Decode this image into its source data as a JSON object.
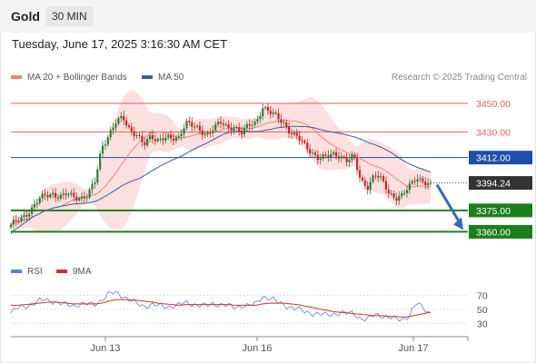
{
  "header": {
    "title": "Gold",
    "timeframe": "30 MIN"
  },
  "datetime": "Tuesday, June 17, 2025 3:16:30 AM CET",
  "legend": {
    "ma20_label": "MA 20 + Bollinger Bands",
    "ma50_label": "MA 50",
    "rsi_label": "RSI",
    "rsi_ma_label": "9MA",
    "credit": "Research © 2025 Trading Central"
  },
  "colors": {
    "bull": "#2e7d32",
    "bear": "#c62828",
    "band": "#f9c6c6",
    "ma20": "#f08080",
    "ma50": "#3a5ba0",
    "support": "#1b7f1b",
    "resistance": "#e06060",
    "pivot": "#1f4eaa",
    "price_tag": "#333333",
    "arrow": "#2f6eb5",
    "rsi": "#5b7fd6",
    "rsi_ma": "#d32f2f"
  },
  "chart_data": [
    {
      "type": "candlestick",
      "title": "Gold",
      "timeframe": "30 MIN",
      "x_ticks": [
        "Jun 13",
        "Jun 16",
        "Jun 17"
      ],
      "ylim": [
        3352,
        3462
      ],
      "current_price": "3394.24",
      "levels": [
        {
          "value": 3450.0,
          "label": "3450.00",
          "kind": "resistance"
        },
        {
          "value": 3430.0,
          "label": "3430.00",
          "kind": "resistance"
        },
        {
          "value": 3412.0,
          "label": "3412.00",
          "kind": "pivot"
        },
        {
          "value": 3375.0,
          "label": "3375.00",
          "kind": "support"
        },
        {
          "value": 3360.0,
          "label": "3360.00",
          "kind": "support"
        }
      ],
      "arrow": {
        "from": 3394.24,
        "to": 3360.0
      },
      "price_anchors": [
        3364,
        3368,
        3372,
        3376,
        3382,
        3386,
        3387,
        3384,
        3386,
        3385,
        3384,
        3385,
        3395,
        3420,
        3428,
        3436,
        3440,
        3432,
        3428,
        3420,
        3427,
        3425,
        3426,
        3424,
        3426,
        3438,
        3434,
        3430,
        3428,
        3434,
        3436,
        3432,
        3434,
        3430,
        3434,
        3436,
        3448,
        3444,
        3440,
        3436,
        3430,
        3426,
        3420,
        3416,
        3412,
        3412,
        3414,
        3414,
        3410,
        3412,
        3396,
        3392,
        3400,
        3396,
        3388,
        3384,
        3385,
        3392,
        3399,
        3395,
        3392
      ]
    },
    {
      "type": "line",
      "title": "RSI",
      "series": [
        {
          "name": "RSI",
          "values": [
            45,
            52,
            55,
            57,
            62,
            64,
            62,
            58,
            57,
            56,
            58,
            57,
            58,
            64,
            72,
            74,
            70,
            63,
            58,
            55,
            57,
            55,
            54,
            55,
            56,
            60,
            58,
            56,
            55,
            59,
            57,
            55,
            53,
            56,
            55,
            58,
            69,
            66,
            61,
            57,
            53,
            50,
            47,
            45,
            43,
            42,
            44,
            45,
            44,
            45,
            37,
            35,
            43,
            42,
            38,
            36,
            36,
            42,
            59,
            52,
            45
          ]
        },
        {
          "name": "9MA",
          "values": [
            56,
            56,
            57,
            58,
            59,
            60,
            61,
            60,
            59,
            58,
            58,
            58,
            58,
            59,
            62,
            64,
            64,
            64,
            63,
            62,
            61,
            59,
            58,
            57,
            56,
            57,
            57,
            57,
            57,
            57,
            57,
            57,
            56,
            56,
            56,
            56,
            58,
            59,
            59,
            59,
            58,
            57,
            55,
            53,
            51,
            49,
            47,
            46,
            45,
            44,
            43,
            42,
            41,
            41,
            40,
            40,
            39,
            40,
            42,
            44,
            46
          ]
        }
      ],
      "ylim": [
        20,
        80
      ],
      "y_ticks": [
        "70",
        "50",
        "30"
      ]
    }
  ]
}
